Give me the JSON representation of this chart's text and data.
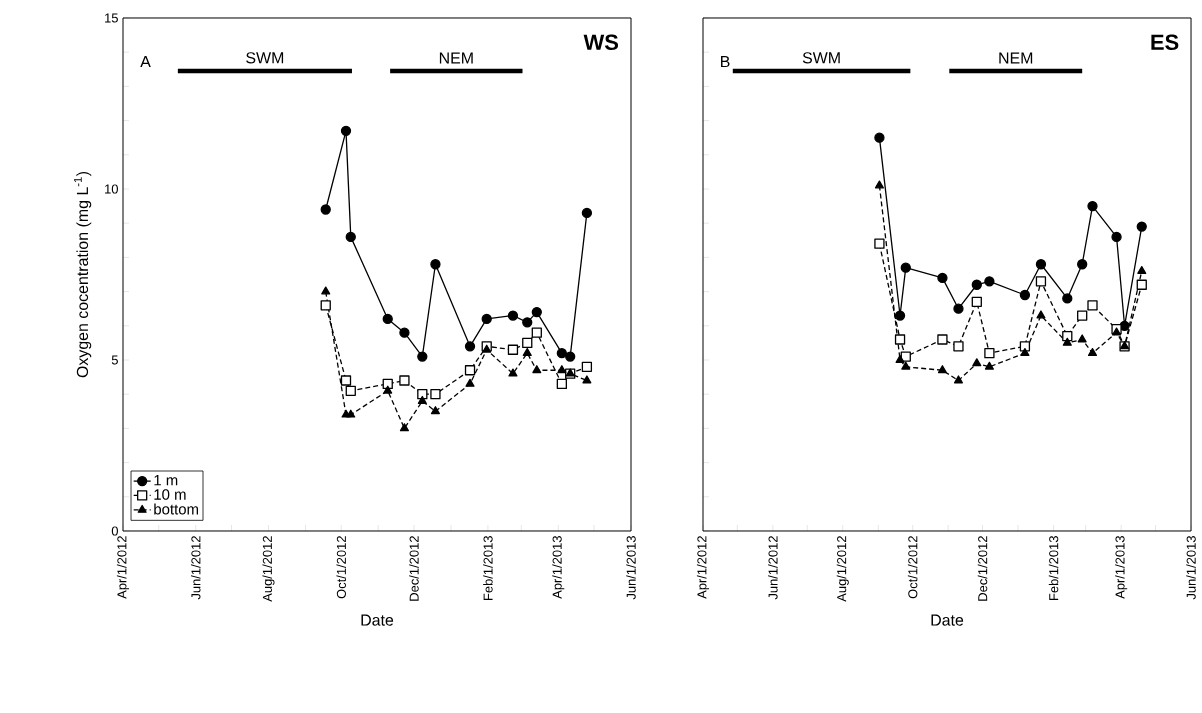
{
  "chart_data": [
    {
      "type": "line",
      "title": "WS",
      "xlabel": "Date",
      "ylabel": "Oxygen cocentration (mg L$^{-1}$)",
      "annotations": [
        "A"
      ],
      "legend": "bottom left",
      "xlim": [
        "2012-04-01",
        "2013-06-01"
      ],
      "xticks": [
        {
          "value": "2012-04-01",
          "label": "Apr/1/2012"
        },
        {
          "value": "2012-05-01",
          "label": null
        },
        {
          "value": "2012-06-01",
          "label": "Jun/1/2012"
        },
        {
          "value": "2012-07-01",
          "label": null
        },
        {
          "value": "2012-08-01",
          "label": "Aug/1/2012"
        },
        {
          "value": "2012-09-01",
          "label": null
        },
        {
          "value": "2012-10-01",
          "label": "Oct/1/2012"
        },
        {
          "value": "2012-11-01",
          "label": null
        },
        {
          "value": "2012-12-01",
          "label": "Dec/1/2012"
        },
        {
          "value": "2013-01-01",
          "label": null
        },
        {
          "value": "2013-02-01",
          "label": "Feb/1/2013"
        },
        {
          "value": "2013-03-01",
          "label": null
        },
        {
          "value": "2013-04-01",
          "label": "Apr/1/2013"
        },
        {
          "value": "2013-05-01",
          "label": null
        },
        {
          "value": "2013-06-01",
          "label": "Jun/1/2013"
        }
      ],
      "ylim": [
        0,
        15
      ],
      "yticks": [
        0,
        {
          "value": 1,
          "label": null
        },
        {
          "value": 2,
          "label": null
        },
        {
          "value": 3,
          "label": null
        },
        {
          "value": 4,
          "label": null
        },
        5,
        {
          "value": 6,
          "label": null
        },
        {
          "value": 7,
          "label": null
        },
        {
          "value": 8,
          "label": null
        },
        {
          "value": 9,
          "label": null
        },
        10,
        {
          "value": 11,
          "label": null
        },
        {
          "value": 12,
          "label": null
        },
        {
          "value": 13,
          "label": null
        },
        {
          "value": 14,
          "label": null
        },
        15
      ],
      "x": [
        "2012-09-18",
        "2012-10-05",
        "2012-10-09",
        "2012-11-09",
        "2012-11-23",
        "2012-12-08",
        "2012-12-19",
        "2013-01-17",
        "2013-01-31",
        "2013-02-22",
        "2013-03-06",
        "2013-03-14",
        "2013-04-04",
        "2013-04-11",
        "2013-04-25"
      ],
      "series": [
        {
          "name": "1 m",
          "color": "#000000",
          "marker": "circle",
          "line_style": "solid",
          "values": [
            9.4,
            11.7,
            8.6,
            6.2,
            5.8,
            5.1,
            7.8,
            5.4,
            6.2,
            6.3,
            6.1,
            6.4,
            5.2,
            5.1,
            9.3
          ]
        },
        {
          "name": "10 m",
          "color": "#000000",
          "marker": "square",
          "line_style": "dashed",
          "values": [
            6.6,
            4.4,
            4.1,
            4.3,
            4.4,
            4.0,
            4.0,
            4.7,
            5.4,
            5.3,
            5.5,
            5.8,
            4.3,
            4.6,
            4.8
          ]
        },
        {
          "name": "bottom",
          "color": "#000000",
          "marker": "triangle",
          "line_style": "dashed",
          "values": [
            7.0,
            3.4,
            3.4,
            4.1,
            3.0,
            3.8,
            3.5,
            4.3,
            5.3,
            4.6,
            5.2,
            4.7,
            4.7,
            4.6,
            4.4
          ]
        },
        {
          "name": "SWM",
          "color": "#000000",
          "marker": "none",
          "line_style": "solid",
          "x": [
            "2012-05-17",
            "2012-10-10"
          ],
          "values": [
            13.45,
            13.45
          ]
        },
        {
          "name": "NEM",
          "color": "#000000",
          "marker": "none",
          "line_style": "solid",
          "x": [
            "2012-11-11",
            "2013-03-02"
          ],
          "values": [
            13.45,
            13.45
          ]
        }
      ]
    },
    {
      "type": "line",
      "title": "ES",
      "xlabel": "Date",
      "annotations": [
        "B"
      ],
      "tick_labels": "x",
      "xlim": [
        "2012-04-01",
        "2013-06-01"
      ],
      "xticks": [
        {
          "value": "2012-04-01",
          "label": "Apr/1/2012"
        },
        {
          "value": "2012-05-01",
          "label": null
        },
        {
          "value": "2012-06-01",
          "label": "Jun/1/2012"
        },
        {
          "value": "2012-07-01",
          "label": null
        },
        {
          "value": "2012-08-01",
          "label": "Aug/1/2012"
        },
        {
          "value": "2012-09-01",
          "label": null
        },
        {
          "value": "2012-10-01",
          "label": "Oct/1/2012"
        },
        {
          "value": "2012-11-01",
          "label": null
        },
        {
          "value": "2012-12-01",
          "label": "Dec/1/2012"
        },
        {
          "value": "2013-01-01",
          "label": null
        },
        {
          "value": "2013-02-01",
          "label": "Feb/1/2013"
        },
        {
          "value": "2013-03-01",
          "label": null
        },
        {
          "value": "2013-04-01",
          "label": "Apr/1/2013"
        },
        {
          "value": "2013-05-01",
          "label": null
        },
        {
          "value": "2013-06-01",
          "label": "Jun/1/2013"
        }
      ],
      "ylim": [
        0,
        15
      ],
      "yticks": [
        0,
        {
          "value": 1,
          "label": null
        },
        {
          "value": 2,
          "label": null
        },
        {
          "value": 3,
          "label": null
        },
        {
          "value": 4,
          "label": null
        },
        5,
        {
          "value": 6,
          "label": null
        },
        {
          "value": 7,
          "label": null
        },
        {
          "value": 8,
          "label": null
        },
        {
          "value": 9,
          "label": null
        },
        10,
        {
          "value": 11,
          "label": null
        },
        {
          "value": 12,
          "label": null
        },
        {
          "value": 13,
          "label": null
        },
        {
          "value": 14,
          "label": null
        },
        15
      ],
      "x": [
        "2012-09-02",
        "2012-09-20",
        "2012-09-25",
        "2012-10-27",
        "2012-11-10",
        "2012-11-26",
        "2012-12-07",
        "2013-01-07",
        "2013-01-21",
        "2013-02-13",
        "2013-02-26",
        "2013-03-07",
        "2013-03-28",
        "2013-04-04",
        "2013-04-19"
      ],
      "series": [
        {
          "color": "#000000",
          "marker": "circle",
          "line_style": "solid",
          "values": [
            11.5,
            6.3,
            7.7,
            7.4,
            6.5,
            7.2,
            7.3,
            6.9,
            7.8,
            6.8,
            7.8,
            9.5,
            8.6,
            6.0,
            8.9
          ]
        },
        {
          "color": "#000000",
          "marker": "square",
          "line_style": "dashed",
          "values": [
            8.4,
            5.6,
            5.1,
            5.6,
            5.4,
            6.7,
            5.2,
            5.4,
            7.3,
            5.7,
            6.3,
            6.6,
            5.9,
            5.4,
            7.2
          ]
        },
        {
          "color": "#000000",
          "marker": "triangle",
          "line_style": "dashed",
          "values": [
            10.1,
            5.0,
            4.8,
            4.7,
            4.4,
            4.9,
            4.8,
            5.2,
            6.3,
            5.5,
            5.6,
            5.2,
            5.8,
            5.4,
            7.6
          ]
        },
        {
          "name": "SWM",
          "color": "#000000",
          "marker": "none",
          "line_style": "solid",
          "x": [
            "2012-04-27",
            "2012-09-29"
          ],
          "values": [
            13.45,
            13.45
          ]
        },
        {
          "name": "NEM",
          "color": "#000000",
          "marker": "none",
          "line_style": "solid",
          "x": [
            "2012-11-02",
            "2013-02-26"
          ],
          "values": [
            13.45,
            13.45
          ]
        }
      ]
    }
  ]
}
